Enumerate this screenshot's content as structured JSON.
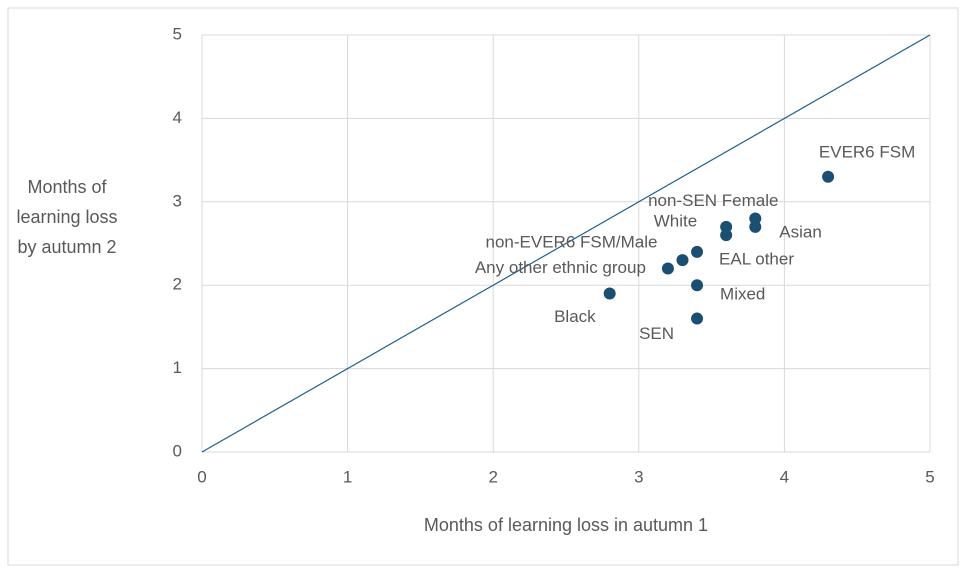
{
  "chart_data": {
    "type": "scatter",
    "x_label": "Months of learning loss in autumn 1",
    "y_label": "Months of learning loss by autumn 2",
    "labels": [
      "EVER6 FSM",
      "non-SEN Female",
      "Asian",
      "White",
      null,
      "EAL other",
      "non-EVER6 FSM/Male",
      "Any other ethnic group",
      "Mixed",
      "Black",
      "SEN"
    ],
    "x": [
      4.3,
      3.8,
      3.8,
      3.6,
      3.6,
      3.4,
      3.3,
      3.2,
      3.4,
      2.8,
      3.4
    ],
    "y": [
      3.3,
      2.8,
      2.7,
      2.7,
      2.6,
      2.4,
      2.3,
      2.2,
      2.0,
      1.9,
      1.6
    ],
    "color": "#1b4f72",
    "xlim": [
      0,
      5
    ],
    "xticks": [
      0,
      1,
      2,
      3,
      4,
      5
    ],
    "ylim": [
      0,
      5
    ],
    "yticks": [
      0,
      1,
      2,
      3,
      4,
      5
    ],
    "grid": true
  }
}
